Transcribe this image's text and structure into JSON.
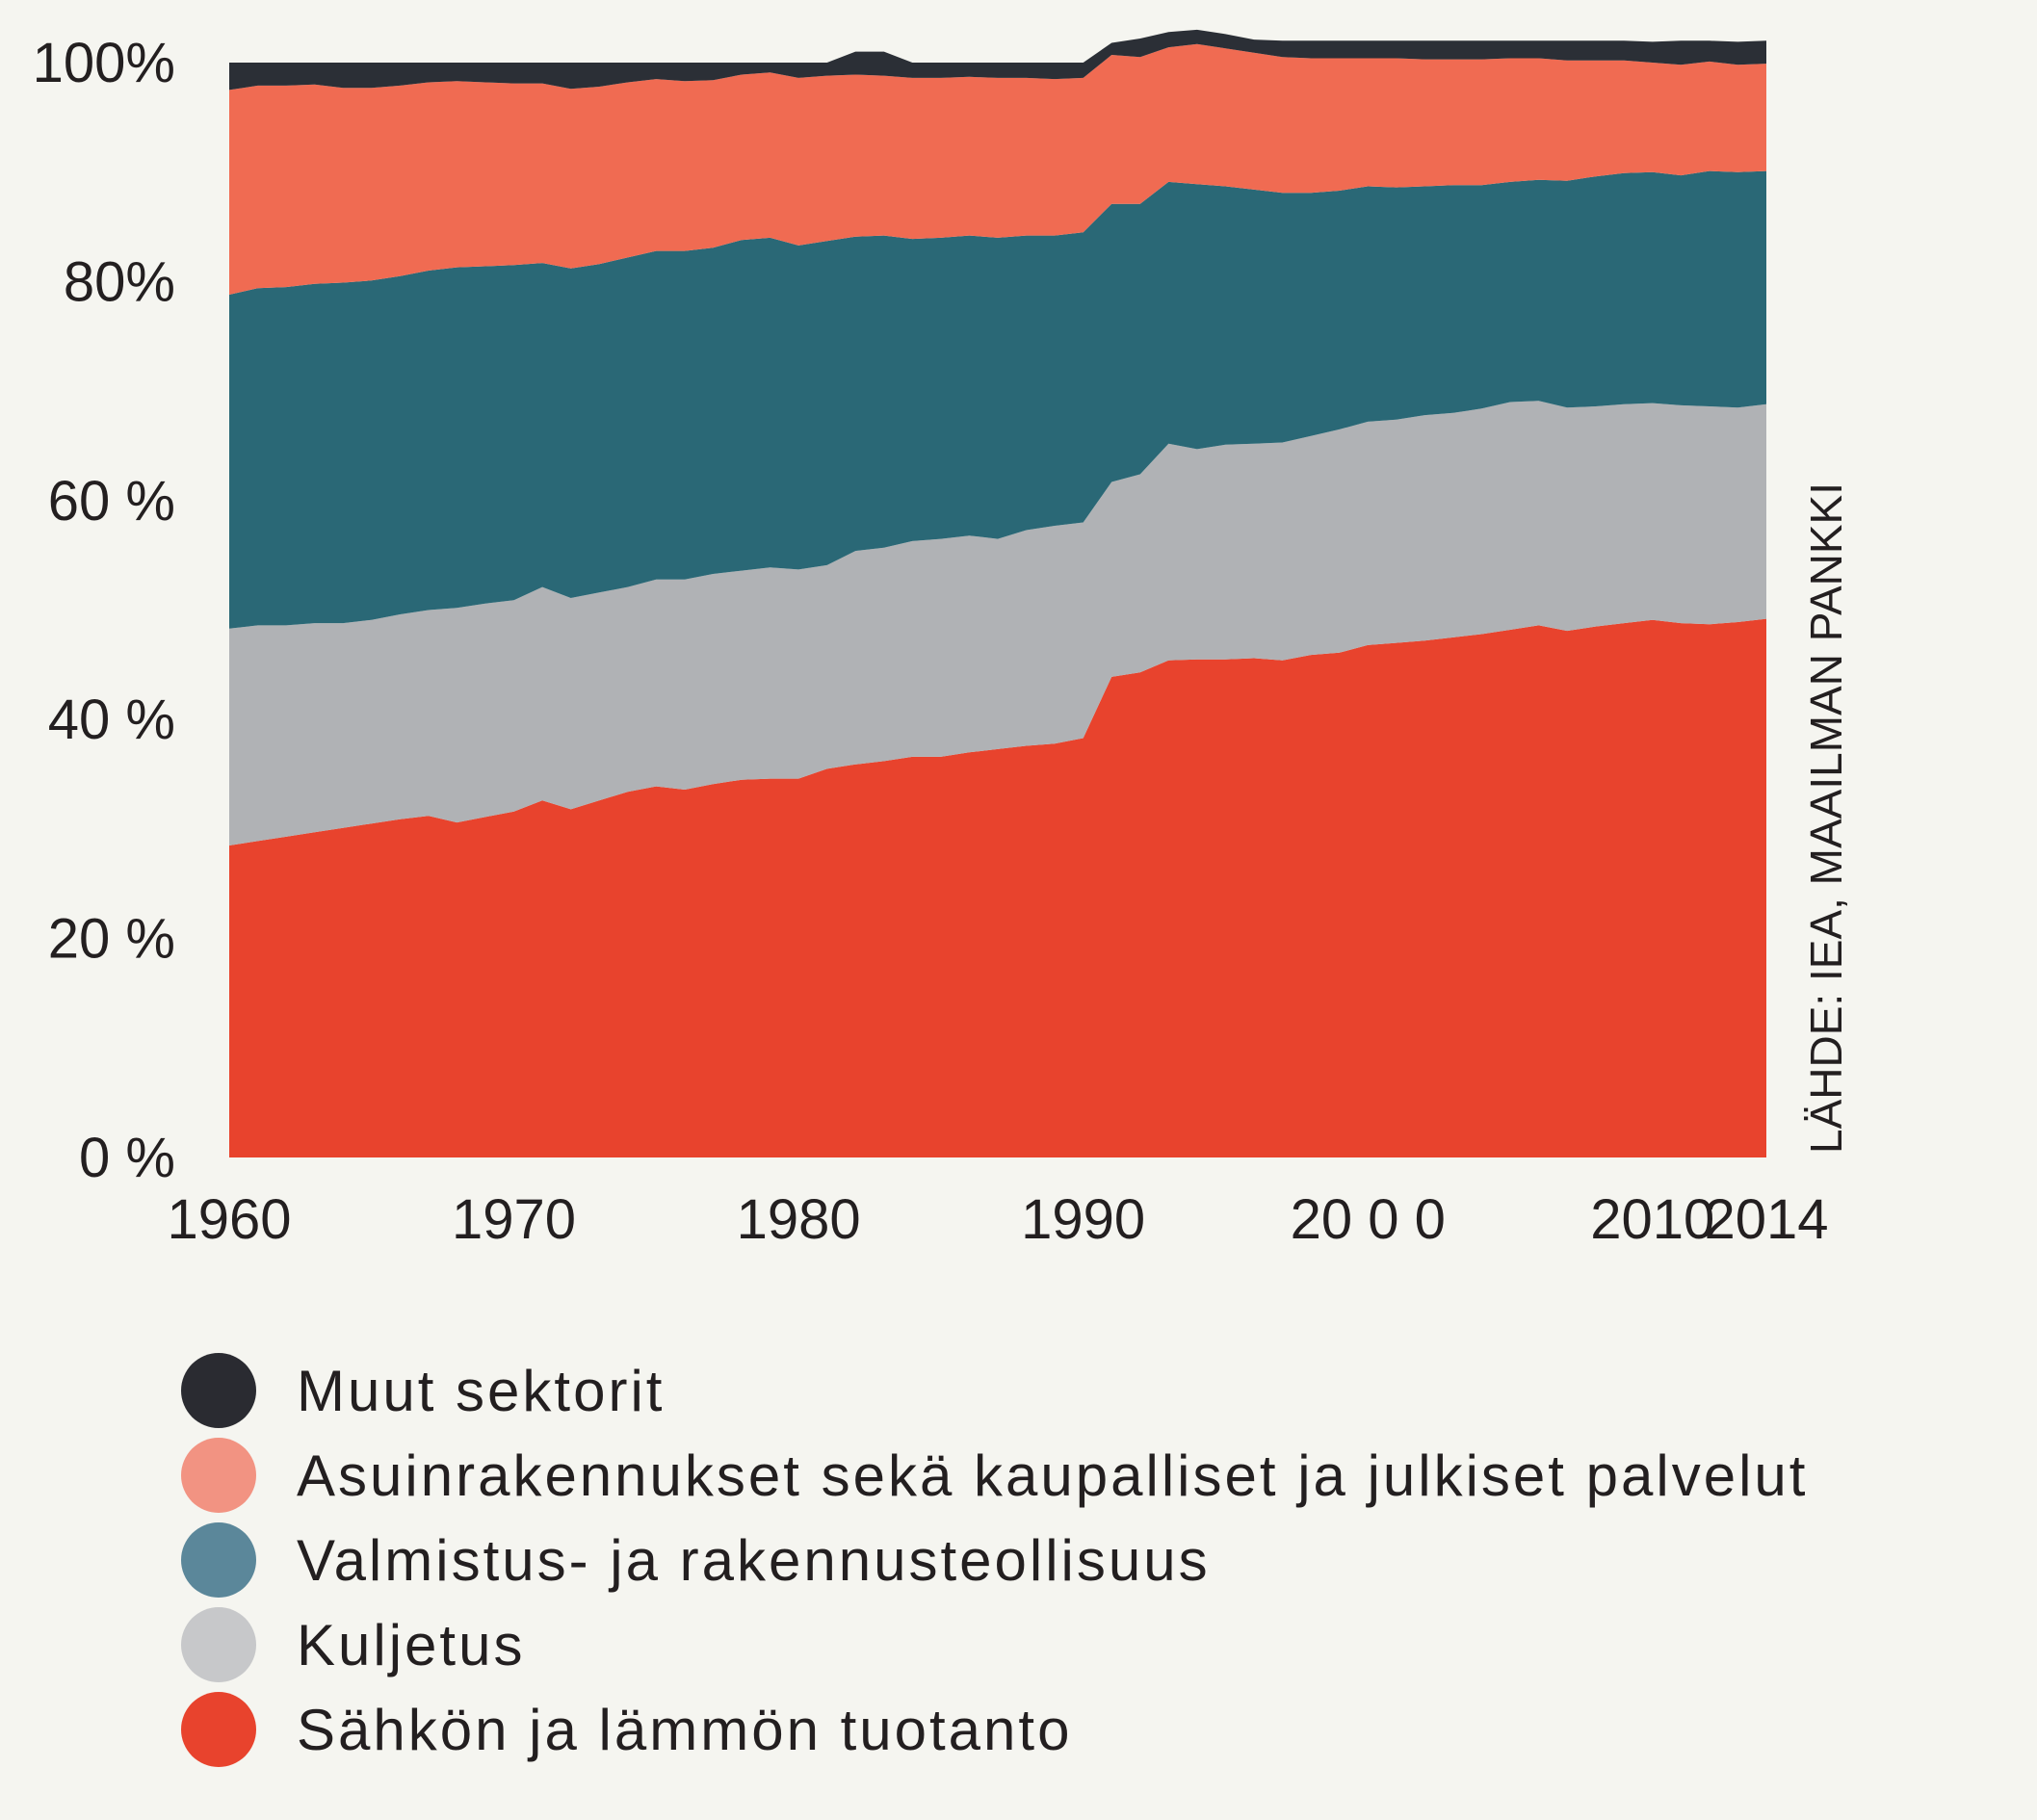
{
  "chart_data": {
    "type": "area",
    "stacked": true,
    "percent": true,
    "x": [
      1960,
      1961,
      1962,
      1963,
      1964,
      1965,
      1966,
      1967,
      1968,
      1969,
      1970,
      1971,
      1972,
      1973,
      1974,
      1975,
      1976,
      1977,
      1978,
      1979,
      1980,
      1981,
      1982,
      1983,
      1984,
      1985,
      1986,
      1987,
      1988,
      1989,
      1990,
      1991,
      1992,
      1993,
      1994,
      1995,
      1996,
      1997,
      1998,
      1999,
      2000,
      2001,
      2002,
      2003,
      2004,
      2005,
      2006,
      2007,
      2008,
      2009,
      2010,
      2011,
      2012,
      2013,
      2014
    ],
    "x_ticks": [
      1960,
      1970,
      1980,
      1990,
      2000,
      2010,
      2014
    ],
    "x_tick_labels": [
      "1960",
      "1970",
      "1980",
      "1990",
      "20 0 0",
      "2010",
      "2014"
    ],
    "y_ticks": [
      0,
      20,
      40,
      60,
      80,
      100
    ],
    "y_tick_labels": [
      "0 %",
      "20 %",
      "40 %",
      "60 %",
      "80%",
      "100%"
    ],
    "ylim": [
      0,
      100
    ],
    "xlim": [
      1960,
      2014
    ],
    "source": "LÄHDE: IEA, MAAILMAN PANKKI",
    "legend_position": "bottom",
    "series": [
      {
        "name": "Sähkön ja lämmön  tuotanto",
        "color": "#e8432d",
        "values": [
          28.5,
          28.9,
          29.3,
          29.7,
          30.1,
          30.5,
          30.9,
          31.2,
          30.6,
          31.1,
          31.6,
          32.6,
          31.8,
          32.6,
          33.4,
          33.9,
          33.6,
          34.1,
          34.5,
          34.6,
          34.6,
          35.5,
          35.9,
          36.2,
          36.6,
          36.6,
          37.0,
          37.3,
          37.6,
          37.8,
          38.3,
          43.9,
          44.3,
          45.4,
          45.5,
          45.5,
          45.6,
          45.4,
          45.9,
          46.1,
          46.8,
          47.0,
          47.2,
          47.5,
          47.8,
          48.2,
          48.6,
          48.1,
          48.5,
          48.8,
          49.1,
          48.8,
          48.7,
          48.9,
          49.2
        ]
      },
      {
        "name": "Kuljetus",
        "color": "#b0b2b5",
        "values": [
          19.8,
          19.7,
          19.3,
          19.1,
          18.7,
          18.6,
          18.7,
          18.8,
          19.6,
          19.5,
          19.3,
          19.5,
          19.3,
          19.0,
          18.7,
          18.9,
          19.2,
          19.2,
          19.1,
          19.3,
          19.1,
          18.6,
          19.5,
          19.5,
          19.7,
          19.9,
          19.8,
          19.2,
          19.7,
          19.9,
          19.7,
          17.8,
          18.1,
          19.8,
          19.2,
          19.6,
          19.6,
          19.9,
          20.0,
          20.4,
          20.4,
          20.4,
          20.6,
          20.5,
          20.6,
          20.8,
          20.5,
          20.4,
          20.1,
          20.0,
          19.8,
          19.9,
          19.9,
          19.6,
          19.6
        ]
      },
      {
        "name": "Valmistus- ja rakennusteollisuus",
        "color": "#2a6876",
        "values": [
          30.5,
          30.8,
          30.9,
          31.0,
          31.1,
          31.0,
          30.9,
          31.0,
          31.1,
          30.8,
          30.6,
          29.6,
          30.1,
          30.0,
          30.1,
          30.0,
          30.0,
          29.8,
          30.2,
          30.1,
          29.6,
          29.6,
          28.7,
          28.5,
          27.6,
          27.5,
          27.4,
          27.5,
          26.9,
          26.5,
          26.5,
          25.4,
          24.7,
          23.9,
          24.2,
          23.6,
          23.2,
          22.8,
          22.2,
          21.8,
          21.5,
          21.2,
          20.9,
          20.8,
          20.4,
          20.1,
          20.2,
          20.7,
          21.0,
          21.1,
          21.1,
          21.0,
          21.5,
          21.5,
          21.3
        ]
      },
      {
        "name": "Asuinrakennukset sekä kaupalliset ja julkiset palvelut",
        "color": "#f06b52",
        "values": [
          18.7,
          18.5,
          18.4,
          18.2,
          17.8,
          17.6,
          17.4,
          17.2,
          17.0,
          16.8,
          16.6,
          16.4,
          16.4,
          16.2,
          16.0,
          15.7,
          15.5,
          15.3,
          15.1,
          15.1,
          15.3,
          15.1,
          14.8,
          14.6,
          14.7,
          14.6,
          14.5,
          14.6,
          14.4,
          14.3,
          14.1,
          13.6,
          13.4,
          12.3,
          12.8,
          12.6,
          12.5,
          12.4,
          12.3,
          12.1,
          11.7,
          11.8,
          11.6,
          11.5,
          11.5,
          11.3,
          11.1,
          11.0,
          10.6,
          10.3,
          10.0,
          10.1,
          10.0,
          9.8,
          9.8
        ]
      },
      {
        "name": "Muut sektorit",
        "color": "#2b2f36",
        "values": [
          2.5,
          2.1,
          2.1,
          2.0,
          2.3,
          2.3,
          2.1,
          1.8,
          1.7,
          1.8,
          1.9,
          1.9,
          2.4,
          2.2,
          1.8,
          1.5,
          1.7,
          1.6,
          1.1,
          0.9,
          1.4,
          1.2,
          2.1,
          2.2,
          1.4,
          1.4,
          1.3,
          1.4,
          1.4,
          1.5,
          1.4,
          1.1,
          1.7,
          1.4,
          1.3,
          1.3,
          1.2,
          1.5,
          1.6,
          1.6,
          1.6,
          1.6,
          1.7,
          1.7,
          1.7,
          1.6,
          1.6,
          1.8,
          1.8,
          1.8,
          1.9,
          2.2,
          1.9,
          2.1,
          2.1
        ]
      }
    ]
  },
  "legend": {
    "items": [
      {
        "label": "Muut sektorit",
        "color": "#2a2b31"
      },
      {
        "label": "Asuinrakennukset sekä kaupalliset ja julkiset palvelut",
        "color": "#f29382"
      },
      {
        "label": "Valmistus-  ja rakennusteollisuus",
        "color": "#5b879a"
      },
      {
        "label": "Kuljetus",
        "color": "#c7c8ca"
      },
      {
        "label": "Sähkön ja lämmön  tuotanto",
        "color": "#e8432d"
      }
    ]
  }
}
